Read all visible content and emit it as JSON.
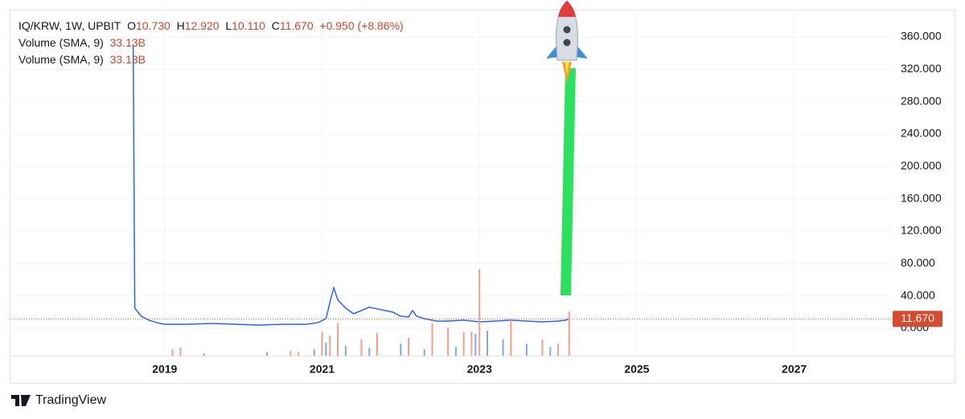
{
  "chart_data": {
    "type": "line",
    "symbol": "IQ/KRW, 1W, UPBIT",
    "legend": {
      "open_label": "O",
      "open": "10.730",
      "high_label": "H",
      "high": "12.920",
      "low_label": "L",
      "low": "10.110",
      "close_label": "C",
      "close": "11.670",
      "change": "+0.950 (+8.86%)",
      "volume_rows": [
        {
          "name": "Volume (SMA, 9)",
          "value": "33.13B"
        },
        {
          "name": "Volume (SMA, 9)",
          "value": "33.13B"
        }
      ]
    },
    "last_price": {
      "value": 11.67,
      "label": "11.670"
    },
    "xlim": [
      2017.03,
      2028.23
    ],
    "xticks": [
      2019,
      2021,
      2023,
      2025,
      2027
    ],
    "ylim": [
      -33.7,
      393.7
    ],
    "yticks": [
      {
        "value": 0,
        "label": "0.000"
      },
      {
        "value": 40,
        "label": "40.000"
      },
      {
        "value": 80,
        "label": "80.000"
      },
      {
        "value": 120,
        "label": "120.000"
      },
      {
        "value": 160,
        "label": "160.000"
      },
      {
        "value": 200,
        "label": "200.000"
      },
      {
        "value": 240,
        "label": "240.000"
      },
      {
        "value": 280,
        "label": "280.000"
      },
      {
        "value": 320,
        "label": "320.000"
      },
      {
        "value": 360,
        "label": "360.000"
      }
    ],
    "y2lim": [
      0,
      3200
    ],
    "grid": true,
    "series": [
      {
        "color": "#2962ff",
        "x": [
          2018.6,
          2018.62,
          2018.7,
          2018.8,
          2018.9,
          2019.0,
          2019.3,
          2019.6,
          2019.9,
          2020.2,
          2020.5,
          2020.8,
          2020.95,
          2021.05,
          2021.12,
          2021.15,
          2021.2,
          2021.25,
          2021.3,
          2021.4,
          2021.5,
          2021.6,
          2021.7,
          2021.8,
          2021.9,
          2022.0,
          2022.1,
          2022.15,
          2022.2,
          2022.3,
          2022.45,
          2022.6,
          2022.8,
          2023.0,
          2023.2,
          2023.4,
          2023.6,
          2023.8,
          2024.0,
          2024.1,
          2024.14
        ],
        "values": [
          350,
          25,
          15,
          10,
          7,
          5,
          5,
          6,
          5,
          4,
          5,
          5,
          7,
          12,
          40,
          50,
          35,
          30,
          25,
          18,
          22,
          26,
          24,
          22,
          20,
          15,
          14,
          22,
          15,
          12,
          9,
          9,
          10,
          8,
          9,
          10,
          9,
          8,
          9,
          10,
          11.67
        ]
      },
      {
        "type": "bar",
        "axis": "y2",
        "color": "#f0a08c",
        "x": [
          2019.1,
          2019.2,
          2020.6,
          2020.7,
          2021.0,
          2021.1,
          2021.2,
          2021.5,
          2021.7,
          2022.1,
          2022.4,
          2022.6,
          2022.8,
          2022.9,
          2023.0,
          2023.4,
          2023.8,
          2024.0,
          2024.14
        ],
        "values": [
          60,
          75,
          45,
          35,
          220,
          185,
          300,
          150,
          210,
          165,
          300,
          260,
          220,
          220,
          800,
          330,
          150,
          110,
          410
        ]
      },
      {
        "type": "bar",
        "axis": "y2",
        "color": "#7fa7e6",
        "x": [
          2019.5,
          2020.3,
          2020.9,
          2021.05,
          2021.3,
          2021.6,
          2022.0,
          2022.3,
          2022.7,
          2022.95,
          2023.1,
          2023.3,
          2023.6,
          2023.9
        ],
        "values": [
          20,
          30,
          60,
          120,
          90,
          70,
          110,
          60,
          80,
          200,
          230,
          150,
          110,
          80
        ]
      }
    ],
    "brand": "TradingView"
  }
}
